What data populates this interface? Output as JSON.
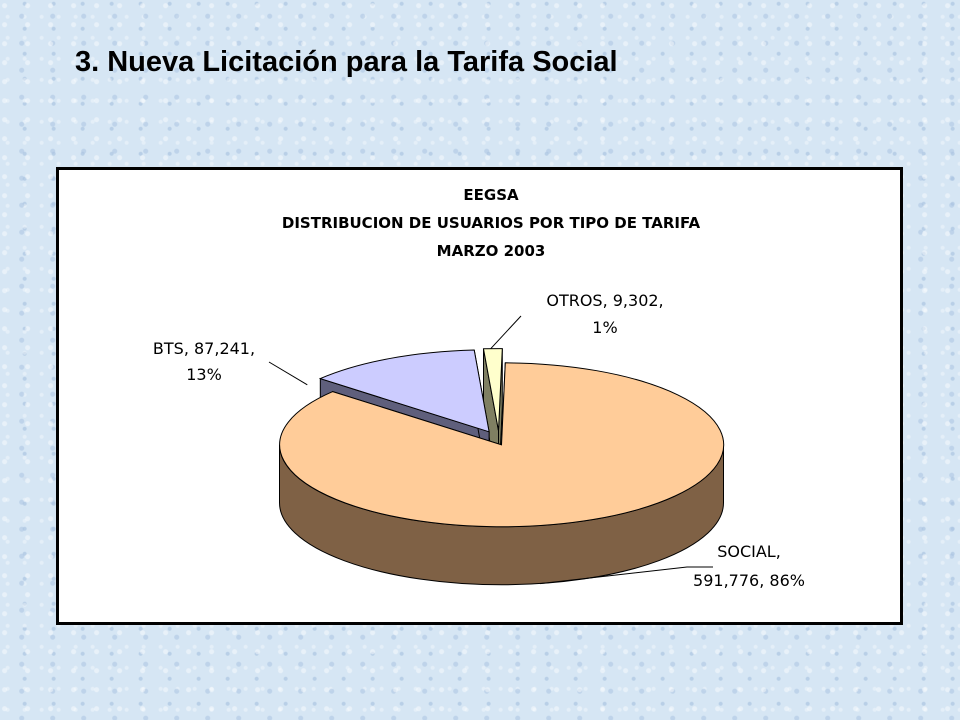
{
  "slide": {
    "title": "3. Nueva Licitación para la Tarifa Social"
  },
  "chart_data": {
    "type": "pie",
    "title_lines": [
      "EEGSA",
      "DISTRIBUCION DE USUARIOS POR TIPO DE TARIFA",
      "MARZO 2003"
    ],
    "categories": [
      "SOCIAL",
      "BTS",
      "OTROS"
    ],
    "values": [
      591776,
      87241,
      9302
    ],
    "percents": [
      86,
      13,
      1
    ],
    "exploded": true,
    "three_d": true,
    "legend": "none",
    "data_labels": [
      {
        "line1": "SOCIAL,",
        "line2": "591,776, 86%"
      },
      {
        "line1": "BTS, 87,241,",
        "line2": "13%"
      },
      {
        "line1": "OTROS, 9,302,",
        "line2": "1%"
      }
    ],
    "colors": {
      "SOCIAL": {
        "top": "#ffcc99",
        "side": "#7f6145"
      },
      "BTS": {
        "top": "#ccccff",
        "side": "#5f5f7c"
      },
      "OTROS": {
        "top": "#ffffcc",
        "side": "#7f7f62"
      }
    }
  }
}
